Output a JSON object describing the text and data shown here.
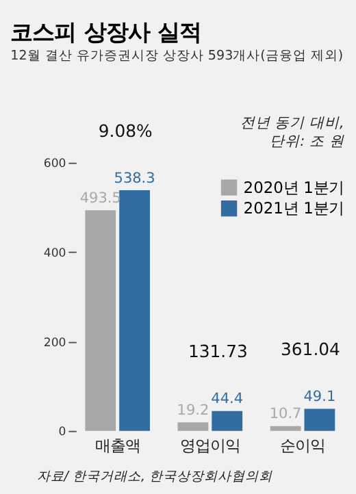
{
  "chart_data": {
    "type": "bar",
    "title": "코스피 상장사 실적",
    "subtitle": "12월 결산 유가증권시장 상장사 593개사(금융업 제외)",
    "categories": [
      "매출액",
      "영업이익",
      "순이익"
    ],
    "series": [
      {
        "name": "2020년 1분기",
        "color": "#a7a8aa",
        "values": [
          493.5,
          19.2,
          10.7
        ]
      },
      {
        "name": "2021년 1분기",
        "color": "#336ca0",
        "values": [
          538.3,
          44.4,
          49.1
        ]
      }
    ],
    "ylim": [
      0,
      600
    ],
    "yticks": [
      0,
      200,
      400,
      600
    ],
    "grid": false,
    "legend": "top right",
    "data_labels": true,
    "annotations": [
      "9.08%",
      "131.73",
      "361.04",
      "전년 동기 대비,\n단위: 조 원",
      "자료/ 한국거래소, 한국상장회사협의회"
    ]
  }
}
